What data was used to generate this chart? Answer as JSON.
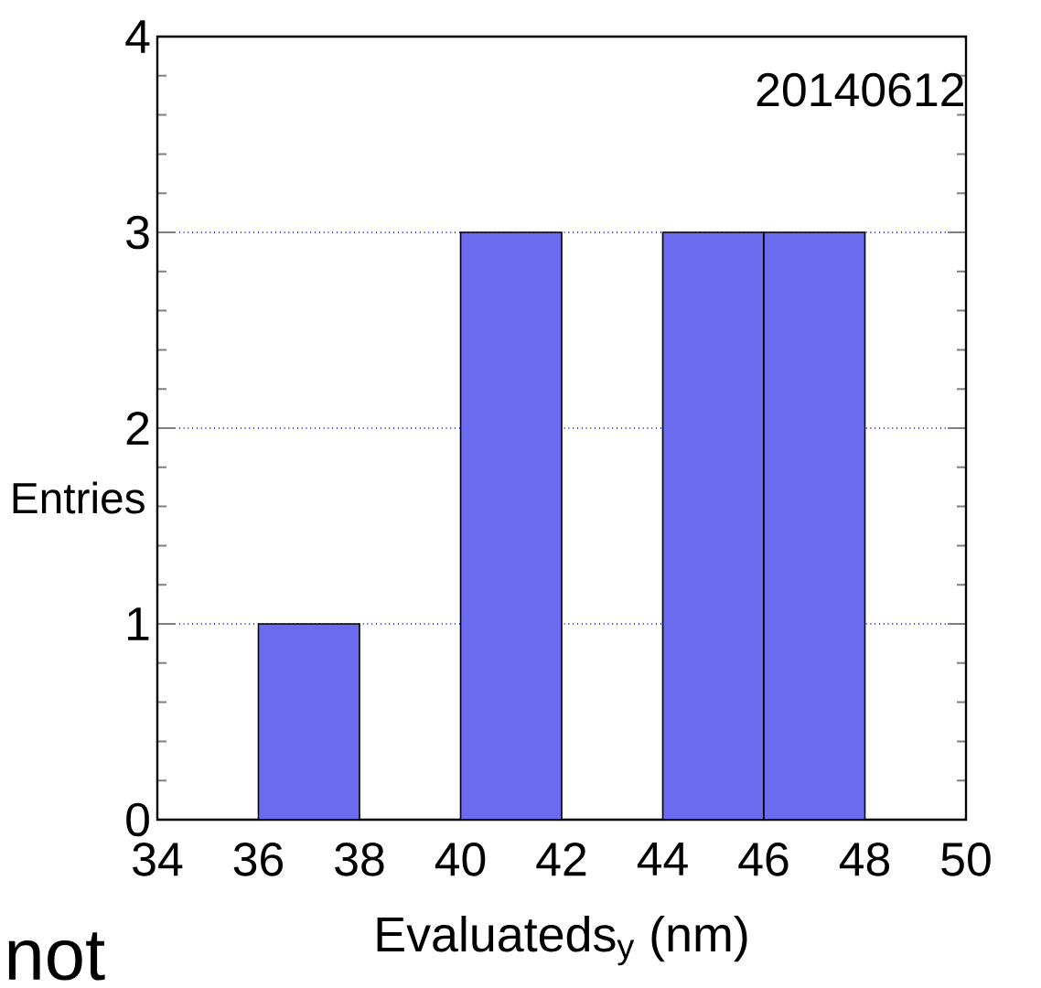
{
  "chart_data": {
    "type": "histogram",
    "xlabel": "Evaluateds$_{y}$ (nm)",
    "ylabel": "Entries",
    "annotations": [
      "20140612",
      "not"
    ],
    "bins": [
      34,
      36,
      38,
      40,
      42,
      44,
      46,
      48,
      50
    ],
    "values": [
      0,
      1,
      0,
      3,
      0,
      3,
      3,
      0
    ],
    "color": "#6b6bf0",
    "xlim": [
      34,
      50
    ],
    "ylim": [
      0,
      4
    ],
    "xticks": [
      34,
      36,
      38,
      40,
      42,
      44,
      46,
      48,
      50
    ],
    "yticks": [
      0,
      1,
      2,
      3,
      4
    ],
    "grid": "y"
  }
}
